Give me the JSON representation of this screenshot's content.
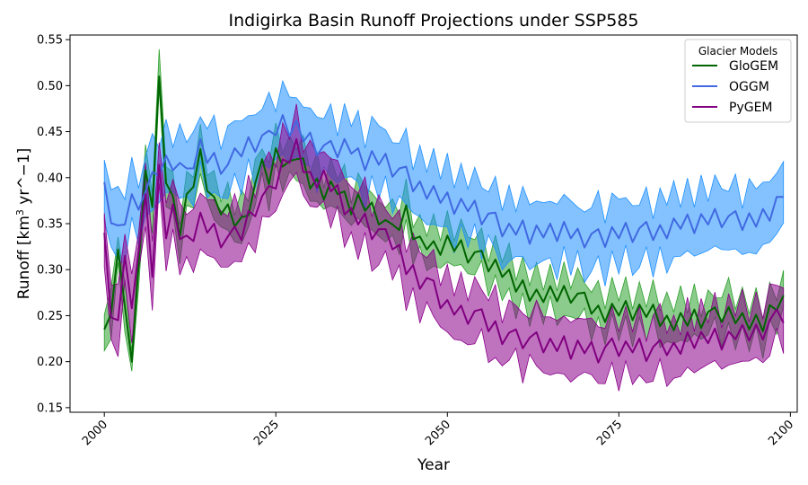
{
  "chart_data": {
    "type": "line",
    "title": "Indigirka Basin Runoff Projections under SSP585",
    "xlabel": "Year",
    "ylabel_main": "Runoff [km",
    "ylabel_sup": "3",
    "ylabel_rest": " yr^−1]",
    "xlim": [
      1995,
      2101
    ],
    "ylim": [
      0.145,
      0.555
    ],
    "xticks": [
      2000,
      2025,
      2050,
      2075,
      2100
    ],
    "yticks": [
      0.15,
      0.2,
      0.25,
      0.3,
      0.35,
      0.4,
      0.45,
      0.5,
      0.55
    ],
    "ytick_labels": [
      "0.15",
      "0.20",
      "0.25",
      "0.30",
      "0.35",
      "0.40",
      "0.45",
      "0.50",
      "0.55"
    ],
    "legend": {
      "title": "Glacier Models",
      "placement": "top-right"
    },
    "series": [
      {
        "name": "GloGEM",
        "color": "#006400",
        "fill_color": "#2ca02c",
        "band_halfwidth": 0.02,
        "knots": [
          [
            2000,
            0.235
          ],
          [
            2001,
            0.24
          ],
          [
            2002,
            0.33
          ],
          [
            2003,
            0.25
          ],
          [
            2004,
            0.21
          ],
          [
            2005,
            0.3
          ],
          [
            2006,
            0.42
          ],
          [
            2007,
            0.36
          ],
          [
            2008,
            0.495
          ],
          [
            2009,
            0.4
          ],
          [
            2010,
            0.37
          ],
          [
            2011,
            0.34
          ],
          [
            2013,
            0.4
          ],
          [
            2014,
            0.425
          ],
          [
            2016,
            0.37
          ],
          [
            2018,
            0.36
          ],
          [
            2020,
            0.35
          ],
          [
            2022,
            0.39
          ],
          [
            2023,
            0.41
          ],
          [
            2024,
            0.4
          ],
          [
            2025,
            0.42
          ],
          [
            2027,
            0.41
          ],
          [
            2028,
            0.43
          ],
          [
            2030,
            0.4
          ],
          [
            2032,
            0.38
          ],
          [
            2034,
            0.39
          ],
          [
            2036,
            0.37
          ],
          [
            2038,
            0.37
          ],
          [
            2040,
            0.36
          ],
          [
            2042,
            0.34
          ],
          [
            2044,
            0.36
          ],
          [
            2046,
            0.33
          ],
          [
            2048,
            0.32
          ],
          [
            2050,
            0.33
          ],
          [
            2052,
            0.32
          ],
          [
            2054,
            0.315
          ],
          [
            2056,
            0.31
          ],
          [
            2058,
            0.3
          ],
          [
            2060,
            0.28
          ],
          [
            2062,
            0.275
          ],
          [
            2065,
            0.27
          ],
          [
            2068,
            0.275
          ],
          [
            2070,
            0.265
          ],
          [
            2072,
            0.255
          ],
          [
            2075,
            0.255
          ],
          [
            2078,
            0.255
          ],
          [
            2080,
            0.25
          ],
          [
            2082,
            0.245
          ],
          [
            2085,
            0.245
          ],
          [
            2088,
            0.25
          ],
          [
            2090,
            0.25
          ],
          [
            2093,
            0.245
          ],
          [
            2096,
            0.245
          ],
          [
            2098,
            0.26
          ],
          [
            2099,
            0.265
          ]
        ],
        "noise": [
          0,
          0.012,
          -0.008,
          0.01,
          -0.01,
          0.005,
          -0.012,
          0.008,
          0.015,
          -0.006,
          0.01,
          -0.004,
          0.012,
          -0.01,
          0.006,
          -0.012,
          0.009,
          -0.005,
          0.011,
          -0.008,
          0.007,
          -0.011,
          0.004,
          0.01,
          -0.007,
          0.012,
          -0.003,
          0.008,
          -0.01,
          0.006,
          -0.012,
          0.009,
          -0.004,
          0.011,
          -0.008,
          0.005,
          -0.01,
          0.012,
          -0.006,
          0.008,
          -0.011,
          0.004,
          0.009,
          -0.007,
          0.01,
          -0.012,
          0.006,
          -0.003,
          0.011,
          -0.009,
          0.007,
          -0.005,
          0.012,
          -0.01,
          0.004,
          0.008,
          -0.012,
          0.006,
          -0.008,
          0.01,
          -0.004,
          0.011,
          -0.009,
          0.005,
          -0.007,
          0.012,
          -0.006,
          0.009,
          -0.011,
          0.004,
          0.01,
          -0.008,
          0.006,
          -0.012,
          0.008,
          -0.005,
          0.011,
          -0.01,
          0.007,
          -0.004,
          0.012,
          -0.009,
          0.005,
          -0.011,
          0.008,
          -0.006,
          0.01,
          -0.012,
          0.004,
          0.009,
          -0.007,
          0.011,
          -0.005,
          0.008,
          -0.01,
          0.006,
          -0.012,
          0.009,
          -0.004,
          0.007
        ]
      },
      {
        "name": "OGGM",
        "color": "#4169e1",
        "fill_color": "#1e90ff",
        "band_halfwidth": 0.033,
        "knots": [
          [
            2000,
            0.385
          ],
          [
            2002,
            0.34
          ],
          [
            2004,
            0.37
          ],
          [
            2006,
            0.38
          ],
          [
            2008,
            0.41
          ],
          [
            2010,
            0.42
          ],
          [
            2012,
            0.4
          ],
          [
            2014,
            0.43
          ],
          [
            2016,
            0.42
          ],
          [
            2018,
            0.41
          ],
          [
            2020,
            0.43
          ],
          [
            2022,
            0.44
          ],
          [
            2024,
            0.44
          ],
          [
            2026,
            0.46
          ],
          [
            2028,
            0.45
          ],
          [
            2030,
            0.44
          ],
          [
            2032,
            0.43
          ],
          [
            2034,
            0.43
          ],
          [
            2036,
            0.43
          ],
          [
            2038,
            0.42
          ],
          [
            2040,
            0.42
          ],
          [
            2042,
            0.41
          ],
          [
            2044,
            0.4
          ],
          [
            2046,
            0.39
          ],
          [
            2048,
            0.38
          ],
          [
            2050,
            0.375
          ],
          [
            2052,
            0.37
          ],
          [
            2054,
            0.365
          ],
          [
            2056,
            0.355
          ],
          [
            2058,
            0.345
          ],
          [
            2060,
            0.345
          ],
          [
            2062,
            0.34
          ],
          [
            2065,
            0.34
          ],
          [
            2068,
            0.34
          ],
          [
            2070,
            0.335
          ],
          [
            2072,
            0.335
          ],
          [
            2075,
            0.34
          ],
          [
            2078,
            0.34
          ],
          [
            2080,
            0.34
          ],
          [
            2082,
            0.345
          ],
          [
            2085,
            0.35
          ],
          [
            2088,
            0.355
          ],
          [
            2090,
            0.355
          ],
          [
            2093,
            0.35
          ],
          [
            2096,
            0.36
          ],
          [
            2099,
            0.375
          ]
        ],
        "noise": [
          0.01,
          -0.012,
          0.008,
          -0.006,
          0.012,
          -0.01,
          0.005,
          0.011,
          -0.008,
          0.009,
          -0.012,
          0.006,
          0.01,
          -0.005,
          0.012,
          -0.009,
          0.007,
          -0.011,
          0.004,
          0.012,
          -0.007,
          0.009,
          -0.012,
          0.006,
          0.011,
          -0.004,
          0.008,
          -0.01,
          0.012,
          -0.006,
          0.009,
          -0.011,
          0.005,
          0.01,
          -0.008,
          0.012,
          -0.004,
          0.007,
          -0.012,
          0.009,
          -0.006,
          0.011,
          -0.009,
          0.005,
          0.012,
          -0.01,
          0.006,
          -0.008,
          0.011,
          -0.005,
          0.009,
          -0.012,
          0.007,
          -0.004,
          0.01,
          -0.011,
          0.006,
          0.012,
          -0.009,
          0.005,
          -0.007,
          0.011,
          -0.012,
          0.008,
          -0.005,
          0.01,
          -0.009,
          0.012,
          -0.006,
          0.007,
          -0.011,
          0.004,
          0.009,
          -0.012,
          0.008,
          -0.006,
          0.011,
          -0.01,
          0.005,
          0.012,
          -0.008,
          0.006,
          -0.011,
          0.009,
          -0.004,
          0.01,
          -0.012,
          0.007,
          -0.006,
          0.011,
          -0.009,
          0.005,
          0.012,
          -0.007,
          0.008,
          -0.01,
          0.006,
          -0.012,
          0.009,
          0.004
        ]
      },
      {
        "name": "PyGEM",
        "color": "#800080",
        "fill_color": "#8b008b",
        "band_halfwidth": 0.03,
        "knots": [
          [
            2000,
            0.34
          ],
          [
            2001,
            0.26
          ],
          [
            2002,
            0.235
          ],
          [
            2003,
            0.33
          ],
          [
            2004,
            0.25
          ],
          [
            2005,
            0.33
          ],
          [
            2006,
            0.37
          ],
          [
            2007,
            0.3
          ],
          [
            2008,
            0.4
          ],
          [
            2009,
            0.34
          ],
          [
            2010,
            0.36
          ],
          [
            2012,
            0.33
          ],
          [
            2014,
            0.35
          ],
          [
            2016,
            0.34
          ],
          [
            2018,
            0.33
          ],
          [
            2020,
            0.34
          ],
          [
            2022,
            0.37
          ],
          [
            2024,
            0.38
          ],
          [
            2026,
            0.41
          ],
          [
            2028,
            0.43
          ],
          [
            2030,
            0.4
          ],
          [
            2032,
            0.4
          ],
          [
            2034,
            0.38
          ],
          [
            2036,
            0.36
          ],
          [
            2038,
            0.35
          ],
          [
            2040,
            0.34
          ],
          [
            2042,
            0.33
          ],
          [
            2044,
            0.3
          ],
          [
            2046,
            0.29
          ],
          [
            2048,
            0.28
          ],
          [
            2050,
            0.26
          ],
          [
            2052,
            0.25
          ],
          [
            2054,
            0.25
          ],
          [
            2056,
            0.24
          ],
          [
            2058,
            0.23
          ],
          [
            2060,
            0.225
          ],
          [
            2062,
            0.22
          ],
          [
            2065,
            0.22
          ],
          [
            2068,
            0.215
          ],
          [
            2070,
            0.215
          ],
          [
            2072,
            0.21
          ],
          [
            2075,
            0.215
          ],
          [
            2078,
            0.215
          ],
          [
            2080,
            0.21
          ],
          [
            2082,
            0.215
          ],
          [
            2085,
            0.22
          ],
          [
            2088,
            0.225
          ],
          [
            2090,
            0.225
          ],
          [
            2093,
            0.23
          ],
          [
            2096,
            0.235
          ],
          [
            2099,
            0.25
          ]
        ],
        "noise": [
          0,
          -0.012,
          0.01,
          -0.015,
          0.008,
          -0.01,
          0.012,
          -0.008,
          0.014,
          -0.006,
          0.011,
          -0.012,
          0.007,
          -0.009,
          0.012,
          -0.005,
          0.01,
          -0.011,
          0.006,
          0.012,
          -0.008,
          0.009,
          -0.012,
          0.005,
          0.011,
          -0.007,
          0.01,
          -0.004,
          0.012,
          -0.009,
          0.006,
          -0.011,
          0.008,
          -0.005,
          0.012,
          -0.01,
          0.007,
          -0.006,
          0.011,
          -0.012,
          0.004,
          0.009,
          -0.008,
          0.012,
          -0.005,
          0.01,
          -0.011,
          0.006,
          0.008,
          -0.012,
          0.007,
          -0.004,
          0.011,
          -0.009,
          0.005,
          0.012,
          -0.007,
          0.009,
          -0.011,
          0.004,
          0.01,
          -0.008,
          0.006,
          0.012,
          -0.01,
          0.005,
          -0.007,
          0.011,
          -0.012,
          0.008,
          -0.006,
          0.009,
          -0.011,
          0.004,
          0.012,
          -0.009,
          0.007,
          -0.005,
          0.01,
          -0.012,
          0.006,
          0.011,
          -0.008,
          0.004,
          -0.01,
          0.012,
          -0.007,
          0.009,
          -0.005,
          0.011,
          -0.012,
          0.006,
          -0.004,
          0.01,
          -0.009,
          0.007,
          -0.011,
          0.005,
          0.012,
          -0.008
        ]
      }
    ]
  }
}
